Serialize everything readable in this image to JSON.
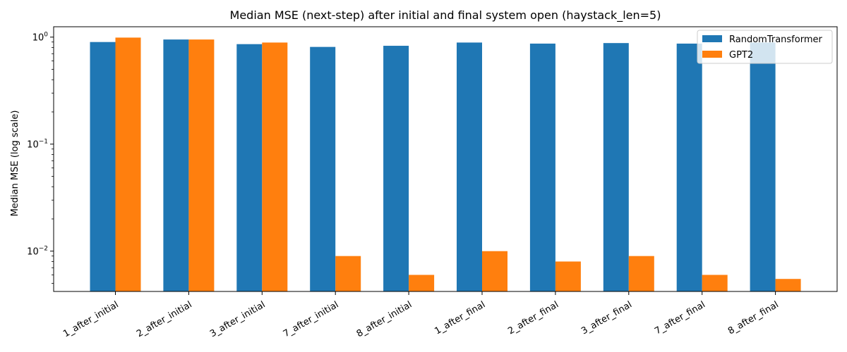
{
  "chart_data": {
    "type": "bar",
    "title": "Median MSE (next-step) after initial and final system open (haystack_len=5)",
    "xlabel": "",
    "ylabel": "Median MSE (log scale)",
    "yscale": "log",
    "ylim": [
      0.0042,
      1.25
    ],
    "yticks": [
      {
        "value": 1,
        "base": "10",
        "exp": "0"
      },
      {
        "value": 0.1,
        "base": "10",
        "exp": "−1"
      },
      {
        "value": 0.01,
        "base": "10",
        "exp": "−2"
      }
    ],
    "categories": [
      "1_after_initial",
      "2_after_initial",
      "3_after_initial",
      "7_after_initial",
      "8_after_initial",
      "1_after_final",
      "2_after_final",
      "3_after_final",
      "7_after_final",
      "8_after_final"
    ],
    "series": [
      {
        "name": "RandomTransformer",
        "color": "#1f77b4",
        "values": [
          0.9,
          0.95,
          0.86,
          0.81,
          0.83,
          0.89,
          0.87,
          0.88,
          0.87,
          0.89
        ]
      },
      {
        "name": "GPT2",
        "color": "#ff7f0e",
        "values": [
          0.99,
          0.95,
          0.89,
          0.009,
          0.006,
          0.01,
          0.008,
          0.009,
          0.006,
          0.0055
        ]
      }
    ],
    "legend": "top-right",
    "grid": false
  }
}
